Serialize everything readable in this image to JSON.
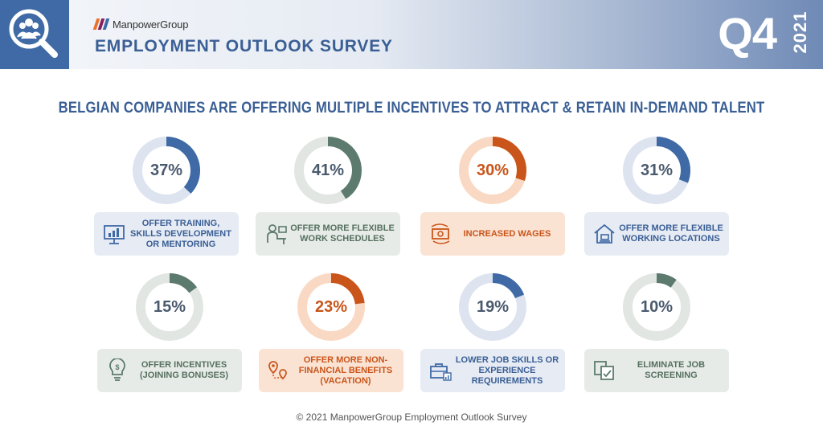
{
  "header": {
    "brand": "ManpowerGroup",
    "survey_title": "EMPLOYMENT OUTLOOK SURVEY",
    "quarter": "Q4",
    "year": "2021",
    "brand_colors": [
      "#e8712b",
      "#8a1c5b",
      "#3f6aa5"
    ]
  },
  "headline": "BELGIAN COMPANIES ARE OFFERING MULTIPLE INCENTIVES TO ATTRACT & RETAIN IN-DEMAND TALENT",
  "chart_data": {
    "type": "pie",
    "categories": [
      "OFFER TRAINING, SKILLS DEVELOPMENT OR MENTORING",
      "OFFER MORE FLEXIBLE WORK SCHEDULES",
      "INCREASED WAGES",
      "OFFER MORE FLEXIBLE WORKING LOCATIONS",
      "OFFER INCENTIVES (JOINING BONUSES)",
      "OFFER MORE NON-FINANCIAL BENEFITS (VACATION)",
      "LOWER JOB SKILLS OR EXPERIENCE REQUIREMENTS",
      "ELIMINATE JOB SCREENING"
    ],
    "values": [
      37,
      41,
      30,
      31,
      15,
      23,
      19,
      10
    ],
    "unit": "%"
  },
  "tiles": [
    {
      "percent": "37%",
      "value": 37,
      "label": "OFFER TRAINING, SKILLS DEVELOPMENT OR MENTORING",
      "icon": "training-monitor-icon",
      "accent": "#3f6aa5",
      "track": "#dde3ef",
      "card_bg": "#e6ebf4",
      "text_color": "#3a5f95"
    },
    {
      "percent": "41%",
      "value": 41,
      "label": "OFFER MORE FLEXIBLE WORK SCHEDULES",
      "icon": "desk-worker-icon",
      "accent": "#5c7a6e",
      "track": "#e1e6e3",
      "card_bg": "#e7ebe8",
      "text_color": "#55705f"
    },
    {
      "percent": "30%",
      "value": 30,
      "label": "INCREASED WAGES",
      "icon": "money-exchange-icon",
      "accent": "#c9551a",
      "track": "#fad9c4",
      "card_bg": "#fbe3d4",
      "text_color": "#c9551a"
    },
    {
      "percent": "31%",
      "value": 31,
      "label": "OFFER MORE FLEXIBLE WORKING LOCATIONS",
      "icon": "home-office-icon",
      "accent": "#3f6aa5",
      "track": "#dde3ef",
      "card_bg": "#e6ebf4",
      "text_color": "#3a5f95"
    },
    {
      "percent": "15%",
      "value": 15,
      "label": "OFFER INCENTIVES (JOINING BONUSES)",
      "icon": "bonus-lightbulb-icon",
      "accent": "#5c7a6e",
      "track": "#e1e6e3",
      "card_bg": "#e7ebe8",
      "text_color": "#55705f"
    },
    {
      "percent": "23%",
      "value": 23,
      "label": "OFFER MORE NON-FINANCIAL BENEFITS (VACATION)",
      "icon": "map-pin-route-icon",
      "accent": "#c9551a",
      "track": "#fad9c4",
      "card_bg": "#fbe3d4",
      "text_color": "#c9551a"
    },
    {
      "percent": "19%",
      "value": 19,
      "label": "LOWER JOB SKILLS OR EXPERIENCE REQUIREMENTS",
      "icon": "briefcase-chart-icon",
      "accent": "#3f6aa5",
      "track": "#dde3ef",
      "card_bg": "#e6ebf4",
      "text_color": "#3a5f95"
    },
    {
      "percent": "10%",
      "value": 10,
      "label": "ELIMINATE JOB SCREENING",
      "icon": "documents-check-icon",
      "accent": "#5c7a6e",
      "track": "#e1e6e3",
      "card_bg": "#e7ebe8",
      "text_color": "#55705f"
    }
  ],
  "footer": "© 2021 ManpowerGroup Employment Outlook Survey"
}
